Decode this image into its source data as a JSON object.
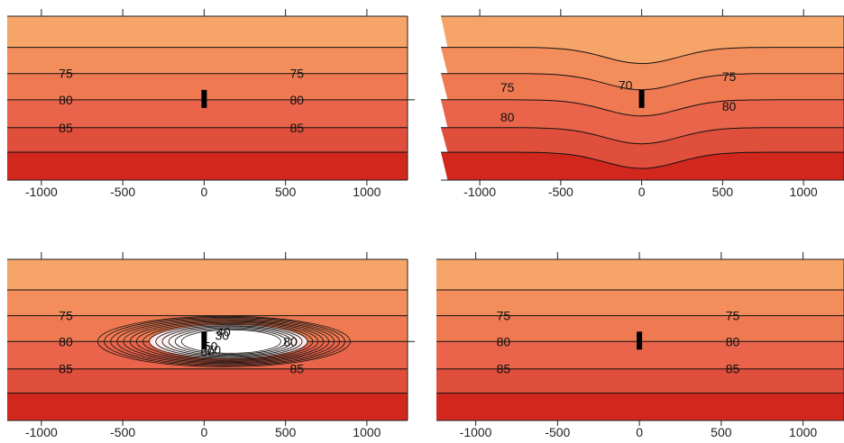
{
  "palette": [
    "#f7a468",
    "#f38d5c",
    "#ef7a52",
    "#e9644a",
    "#e04e3c",
    "#d1271d"
  ],
  "chart_data": [
    {
      "type": "heatmap",
      "subtype": "filled-contour",
      "title": "",
      "xlabel": "",
      "ylabel": "",
      "x_ticks": [
        -1000,
        -500,
        0,
        500,
        1000
      ],
      "xlim": [
        -1210,
        1250
      ],
      "grid": false,
      "contour_levels": [
        75,
        80,
        85
      ],
      "labeled_contours": [
        {
          "value": "75",
          "x": -850
        },
        {
          "value": "75",
          "x": 570
        },
        {
          "value": "80",
          "x": -850
        },
        {
          "value": "80",
          "x": 570
        },
        {
          "value": "85",
          "x": -850
        },
        {
          "value": "85",
          "x": 570
        }
      ],
      "marker_x": 0
    },
    {
      "type": "heatmap",
      "subtype": "filled-contour",
      "title": "",
      "xlabel": "",
      "ylabel": "",
      "x_ticks": [
        -1000,
        -500,
        0,
        500,
        1000
      ],
      "xlim": [
        -1240,
        1250
      ],
      "grid": false,
      "contour_levels": [
        70,
        75,
        80
      ],
      "labeled_contours": [
        {
          "value": "70",
          "x": -100
        },
        {
          "value": "75",
          "x": -830
        },
        {
          "value": "75",
          "x": 540
        },
        {
          "value": "80",
          "x": -830
        },
        {
          "value": "80",
          "x": 540
        }
      ],
      "marker_x": 0,
      "notes": "contours dip near x=0"
    },
    {
      "type": "heatmap",
      "subtype": "filled-contour",
      "title": "",
      "xlabel": "",
      "ylabel": "",
      "x_ticks": [
        -1000,
        -500,
        0,
        500,
        1000
      ],
      "xlim": [
        -1210,
        1250
      ],
      "grid": false,
      "contour_levels": [
        75,
        80,
        85
      ],
      "labeled_contours": [
        {
          "value": "75",
          "x": -850
        },
        {
          "value": "80",
          "x": -850
        },
        {
          "value": "85",
          "x": -850
        },
        {
          "value": "80",
          "x": 530
        },
        {
          "value": "85",
          "x": 570
        },
        {
          "value": "30",
          "x": 110
        },
        {
          "value": "40",
          "x": 120
        },
        {
          "value": "50",
          "x": 40
        },
        {
          "value": "60",
          "x": 20
        },
        {
          "value": "70",
          "x": 60
        }
      ],
      "closed_contours_around_marker": [
        30,
        40,
        50,
        60,
        70
      ],
      "marker_x": 0
    },
    {
      "type": "heatmap",
      "subtype": "filled-contour",
      "title": "",
      "xlabel": "",
      "ylabel": "",
      "x_ticks": [
        -1000,
        -500,
        0,
        500,
        1000
      ],
      "xlim": [
        -1240,
        1250
      ],
      "grid": false,
      "contour_levels": [
        75,
        80,
        85
      ],
      "labeled_contours": [
        {
          "value": "75",
          "x": -830
        },
        {
          "value": "75",
          "x": 570
        },
        {
          "value": "80",
          "x": -830
        },
        {
          "value": "80",
          "x": 570
        },
        {
          "value": "85",
          "x": -830
        },
        {
          "value": "85",
          "x": 570
        }
      ],
      "marker_x": 0
    }
  ]
}
